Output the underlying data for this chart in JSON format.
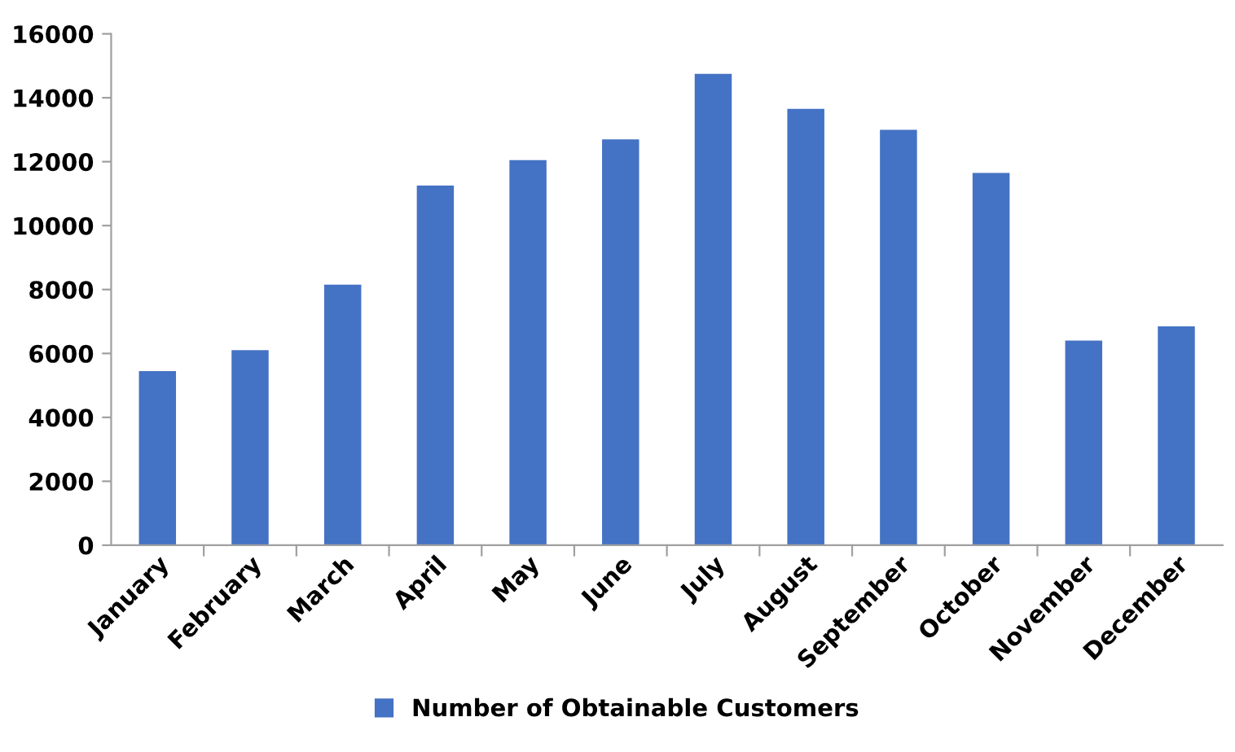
{
  "chart_data": {
    "type": "bar",
    "categories": [
      "January",
      "February",
      "March",
      "April",
      "May",
      "June",
      "July",
      "August",
      "September",
      "October",
      "November",
      "December"
    ],
    "series": [
      {
        "name": "Number of Obtainable Customers",
        "color": "#4472c4",
        "values": [
          5450,
          6100,
          8150,
          11250,
          12050,
          12700,
          14750,
          13650,
          13000,
          11650,
          6400,
          6850
        ]
      }
    ],
    "ylim": [
      0,
      16000
    ],
    "yticks": [
      0,
      2000,
      4000,
      6000,
      8000,
      10000,
      12000,
      14000,
      16000
    ],
    "grid": false,
    "legend": "bottom"
  }
}
